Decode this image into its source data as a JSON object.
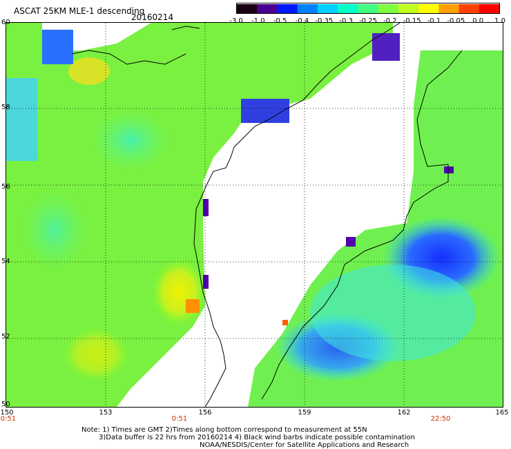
{
  "header": {
    "title": "ASCAT 25KM MLE-1 descending",
    "date": "20160214"
  },
  "colorbar": {
    "labels": [
      "-3.0",
      "-1.0",
      "-0.5",
      "-0.4",
      "-0.35",
      "-0.3",
      "-0.25",
      "-0.2",
      "-0.15",
      "-0.1",
      "-0.05",
      "0.0",
      "1.0"
    ],
    "colors": [
      "#1a0010",
      "#4a0090",
      "#0018ff",
      "#0080ff",
      "#00d0ff",
      "#00ffc8",
      "#40ff80",
      "#80ff40",
      "#c0ff20",
      "#ffff00",
      "#ffa000",
      "#ff4000",
      "#ff0000"
    ]
  },
  "axes": {
    "y_ticks": [
      "60",
      "58",
      "56",
      "54",
      "52",
      "50"
    ],
    "x_ticks": [
      "150",
      "153",
      "156",
      "159",
      "162",
      "165"
    ],
    "time_labels": [
      "0:51",
      "0:51",
      "22:50"
    ]
  },
  "notes": {
    "line1": "Note: 1) Times are GMT 2)Times along bottom correspond to measurement at 55N",
    "line2": "3)Data buffer is 22 hrs from 20160214 4) Black wind barbs indicate possible contamination",
    "line3": "NOAA/NESDIS/Center for Satellite Applications and Research"
  }
}
